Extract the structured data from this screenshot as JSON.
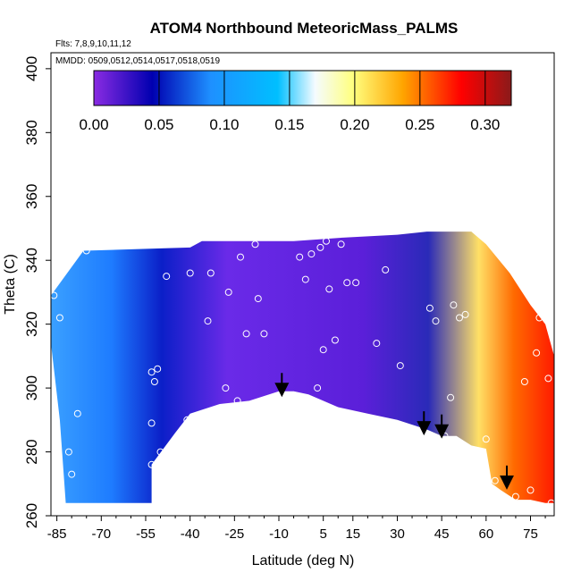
{
  "chart_data": {
    "type": "heatmap",
    "title": "ATOM4 Northbound MeteoricMass_PALMS",
    "annotations": {
      "flights": "Flts: 7,8,9,10,11,12",
      "dates": "MMDD: 0509,0512,0514,0517,0518,0519"
    },
    "xlabel": "Latitude (deg N)",
    "ylabel": "Theta (C)",
    "xlim": [
      -87,
      83
    ],
    "ylim": [
      260,
      405
    ],
    "x_ticks": [
      -85,
      -70,
      -55,
      -40,
      -25,
      -10,
      5,
      15,
      30,
      45,
      60,
      75
    ],
    "x_tick_labels": [
      "-85",
      "-70",
      "-55",
      "-40",
      "-25",
      "-10",
      "5",
      "15",
      "30",
      "45",
      "60",
      "75"
    ],
    "y_ticks": [
      260,
      280,
      300,
      320,
      340,
      360,
      380,
      400
    ],
    "y_tick_labels": [
      "260",
      "280",
      "300",
      "320",
      "340",
      "360",
      "380",
      "400"
    ],
    "grid": false,
    "colorbar": {
      "placement": "top",
      "range": [
        0,
        0.32
      ],
      "ticks": [
        0,
        0.05,
        0.1,
        0.15,
        0.2,
        0.25,
        0.3
      ],
      "tick_labels": [
        "0.00",
        "0.05",
        "0.10",
        "0.15",
        "0.20",
        "0.25",
        "0.30"
      ],
      "colors": [
        "#8a2be2",
        "#0000b0",
        "#1e90ff",
        "#00bfff",
        "#f5fbff",
        "#ffff80",
        "#ffa500",
        "#ff0000",
        "#8b1a1a"
      ]
    },
    "arrows": [
      {
        "lat": -9,
        "theta": 298
      },
      {
        "lat": 39,
        "theta": 286
      },
      {
        "lat": 45,
        "theta": 285
      },
      {
        "lat": 67,
        "theta": 269
      }
    ],
    "tropopause_shading": [
      [
        -53,
        264
      ],
      [
        -53,
        276
      ],
      [
        -45,
        286
      ],
      [
        -40,
        292
      ],
      [
        -30,
        295
      ],
      [
        -20,
        296
      ],
      [
        -10,
        299
      ],
      [
        -5,
        299
      ],
      [
        0,
        298
      ],
      [
        10,
        294
      ],
      [
        20,
        292
      ],
      [
        30,
        290
      ],
      [
        40,
        287
      ],
      [
        45,
        285
      ],
      [
        50,
        285
      ],
      [
        55,
        282
      ],
      [
        60,
        281
      ],
      [
        62,
        270
      ],
      [
        65,
        268
      ],
      [
        70,
        265
      ],
      [
        75,
        265
      ],
      [
        80,
        264
      ]
    ],
    "observations": [
      [
        -86,
        329
      ],
      [
        -84,
        322
      ],
      [
        -81,
        280
      ],
      [
        -80,
        273
      ],
      [
        -78,
        292
      ],
      [
        -75,
        343
      ],
      [
        -53,
        305
      ],
      [
        -52,
        302
      ],
      [
        -51,
        306
      ],
      [
        -53,
        289
      ],
      [
        -53,
        276
      ],
      [
        -50,
        280
      ],
      [
        -48,
        335
      ],
      [
        -41,
        290
      ],
      [
        -40,
        336
      ],
      [
        -35,
        292
      ],
      [
        -34,
        321
      ],
      [
        -33,
        336
      ],
      [
        -28,
        300
      ],
      [
        -27,
        330
      ],
      [
        -24,
        296
      ],
      [
        -23,
        341
      ],
      [
        -21,
        317
      ],
      [
        -18,
        345
      ],
      [
        -17,
        328
      ],
      [
        -15,
        317
      ],
      [
        -3,
        341
      ],
      [
        -1,
        334
      ],
      [
        1,
        342
      ],
      [
        3,
        300
      ],
      [
        4,
        344
      ],
      [
        5,
        312
      ],
      [
        6,
        346
      ],
      [
        7,
        331
      ],
      [
        9,
        315
      ],
      [
        11,
        345
      ],
      [
        13,
        333
      ],
      [
        16,
        333
      ],
      [
        23,
        314
      ],
      [
        26,
        337
      ],
      [
        31,
        307
      ],
      [
        41,
        325
      ],
      [
        43,
        321
      ],
      [
        46,
        285
      ],
      [
        48,
        297
      ],
      [
        49,
        326
      ],
      [
        51,
        322
      ],
      [
        53,
        323
      ],
      [
        60,
        284
      ],
      [
        63,
        271
      ],
      [
        65,
        266
      ],
      [
        70,
        266
      ],
      [
        73,
        302
      ],
      [
        75,
        268
      ],
      [
        77,
        311
      ],
      [
        78,
        322
      ],
      [
        81,
        303
      ],
      [
        82,
        264
      ]
    ]
  }
}
